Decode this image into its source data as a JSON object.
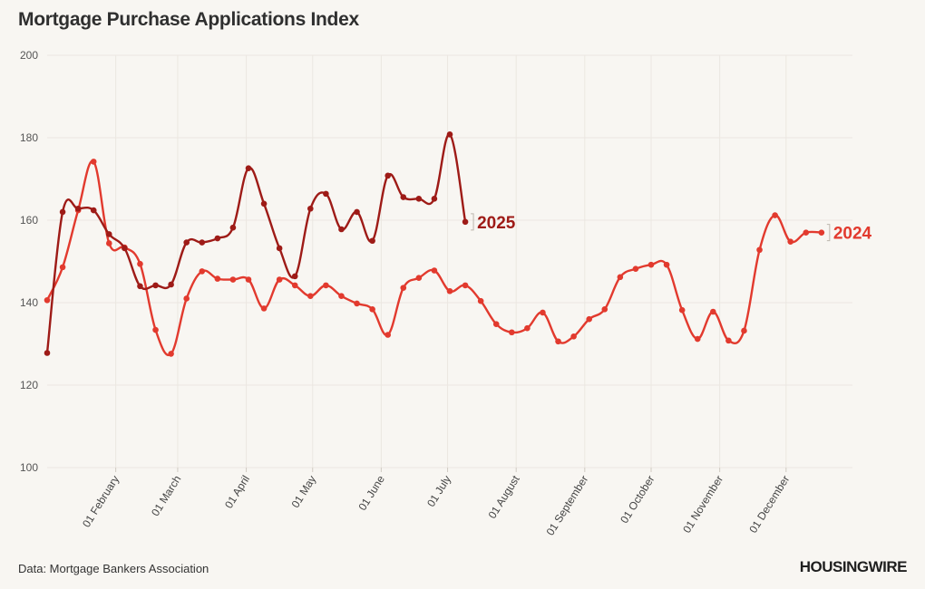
{
  "header": {
    "title": "Mortgage Purchase Applications Index"
  },
  "footer": {
    "source": "Data: Mortgage Bankers Association",
    "logo": "HOUSINGWIRE"
  },
  "colors": {
    "s2024": "#e23a2e",
    "s2025": "#9e1b17",
    "background": "#f8f6f2",
    "grid": "#ebe7e1"
  },
  "chart_data": {
    "type": "line",
    "title": "Mortgage Purchase Applications Index",
    "xlabel": "",
    "ylabel": "",
    "ylim": [
      100,
      200
    ],
    "yticks": [
      100,
      120,
      140,
      160,
      180,
      200
    ],
    "xlim": [
      "2025-01-01",
      "2025-12-31"
    ],
    "xticks": [
      {
        "date": "2025-02-01",
        "label": "01 February"
      },
      {
        "date": "2025-03-01",
        "label": "01 March"
      },
      {
        "date": "2025-04-01",
        "label": "01 April"
      },
      {
        "date": "2025-05-01",
        "label": "01 May"
      },
      {
        "date": "2025-06-01",
        "label": "01 June"
      },
      {
        "date": "2025-07-01",
        "label": "01 July"
      },
      {
        "date": "2025-08-01",
        "label": "01 August"
      },
      {
        "date": "2025-09-01",
        "label": "01 September"
      },
      {
        "date": "2025-10-01",
        "label": "01 October"
      },
      {
        "date": "2025-11-01",
        "label": "01 November"
      },
      {
        "date": "2025-12-01",
        "label": "01 December"
      }
    ],
    "grid": true,
    "series": [
      {
        "name": "2024",
        "color": "#e23a2e",
        "points": [
          [
            "2025-01-01",
            140.6
          ],
          [
            "2025-01-08",
            148.6
          ],
          [
            "2025-01-15",
            162.4
          ],
          [
            "2025-01-22",
            174.2
          ],
          [
            "2025-01-29",
            154.4
          ],
          [
            "2025-02-05",
            153.4
          ],
          [
            "2025-02-12",
            149.4
          ],
          [
            "2025-02-19",
            133.4
          ],
          [
            "2025-02-26",
            127.6
          ],
          [
            "2025-03-05",
            141.0
          ],
          [
            "2025-03-12",
            147.6
          ],
          [
            "2025-03-19",
            145.8
          ],
          [
            "2025-03-26",
            145.6
          ],
          [
            "2025-04-02",
            145.6
          ],
          [
            "2025-04-09",
            138.6
          ],
          [
            "2025-04-16",
            145.6
          ],
          [
            "2025-04-23",
            144.2
          ],
          [
            "2025-04-30",
            141.6
          ],
          [
            "2025-05-07",
            144.2
          ],
          [
            "2025-05-14",
            141.6
          ],
          [
            "2025-05-21",
            139.8
          ],
          [
            "2025-05-28",
            138.4
          ],
          [
            "2025-06-04",
            132.2
          ],
          [
            "2025-06-11",
            143.6
          ],
          [
            "2025-06-18",
            146.0
          ],
          [
            "2025-06-25",
            147.8
          ],
          [
            "2025-07-02",
            142.8
          ],
          [
            "2025-07-09",
            144.2
          ],
          [
            "2025-07-16",
            140.4
          ],
          [
            "2025-07-23",
            134.8
          ],
          [
            "2025-07-30",
            132.8
          ],
          [
            "2025-08-06",
            133.8
          ],
          [
            "2025-08-13",
            137.6
          ],
          [
            "2025-08-20",
            130.6
          ],
          [
            "2025-08-27",
            131.8
          ],
          [
            "2025-09-03",
            136.0
          ],
          [
            "2025-09-10",
            138.4
          ],
          [
            "2025-09-17",
            146.2
          ],
          [
            "2025-09-24",
            148.2
          ],
          [
            "2025-10-01",
            149.2
          ],
          [
            "2025-10-08",
            149.2
          ],
          [
            "2025-10-15",
            138.2
          ],
          [
            "2025-10-22",
            131.2
          ],
          [
            "2025-10-29",
            137.8
          ],
          [
            "2025-11-05",
            130.8
          ],
          [
            "2025-11-12",
            133.2
          ],
          [
            "2025-11-19",
            152.8
          ],
          [
            "2025-11-26",
            161.2
          ],
          [
            "2025-12-03",
            154.8
          ],
          [
            "2025-12-10",
            157.0
          ],
          [
            "2025-12-17",
            157.0
          ]
        ]
      },
      {
        "name": "2025",
        "color": "#9e1b17",
        "points": [
          [
            "2025-01-01",
            127.8
          ],
          [
            "2025-01-08",
            162.0
          ],
          [
            "2025-01-15",
            162.8
          ],
          [
            "2025-01-22",
            162.4
          ],
          [
            "2025-01-29",
            156.6
          ],
          [
            "2025-02-05",
            153.2
          ],
          [
            "2025-02-12",
            144.0
          ],
          [
            "2025-02-19",
            144.2
          ],
          [
            "2025-02-26",
            144.4
          ],
          [
            "2025-03-05",
            154.6
          ],
          [
            "2025-03-12",
            154.6
          ],
          [
            "2025-03-19",
            155.6
          ],
          [
            "2025-03-26",
            158.2
          ],
          [
            "2025-04-02",
            172.6
          ],
          [
            "2025-04-09",
            164.0
          ],
          [
            "2025-04-16",
            153.2
          ],
          [
            "2025-04-23",
            146.4
          ],
          [
            "2025-04-30",
            162.8
          ],
          [
            "2025-05-07",
            166.4
          ],
          [
            "2025-05-14",
            157.8
          ],
          [
            "2025-05-21",
            162.0
          ],
          [
            "2025-05-28",
            155.0
          ],
          [
            "2025-06-04",
            170.8
          ],
          [
            "2025-06-11",
            165.6
          ],
          [
            "2025-06-18",
            165.2
          ],
          [
            "2025-06-25",
            165.2
          ],
          [
            "2025-07-02",
            180.8
          ],
          [
            "2025-07-09",
            159.6
          ]
        ]
      }
    ]
  }
}
